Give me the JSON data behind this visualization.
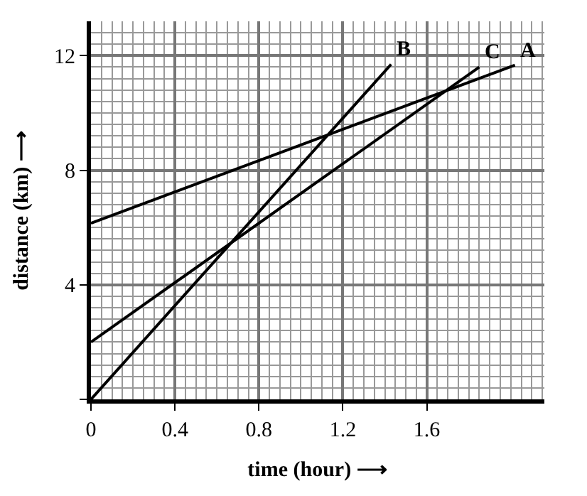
{
  "chart_data": {
    "type": "line",
    "xlabel": "time (hour) ⟶",
    "ylabel": "distance (km) ⟶",
    "xlim": [
      0,
      2.16
    ],
    "ylim": [
      0,
      13.2
    ],
    "xticks": [
      0,
      0.4,
      0.8,
      1.2,
      1.6
    ],
    "yticks": [
      {
        "value": 0,
        "label": null
      },
      4,
      8,
      12
    ],
    "grid": true,
    "legend": false,
    "marker": "none",
    "line_style": "solid",
    "series": [
      {
        "name": "A",
        "color": "#000000",
        "x": [
          0,
          2.02
        ],
        "values": [
          6.15,
          11.67
        ]
      },
      {
        "name": "B",
        "color": "#000000",
        "x": [
          0,
          1.43
        ],
        "values": [
          0,
          11.7
        ]
      },
      {
        "name": "C",
        "color": "#000000",
        "x": [
          0,
          1.85
        ],
        "values": [
          2.0,
          11.6
        ]
      }
    ]
  }
}
